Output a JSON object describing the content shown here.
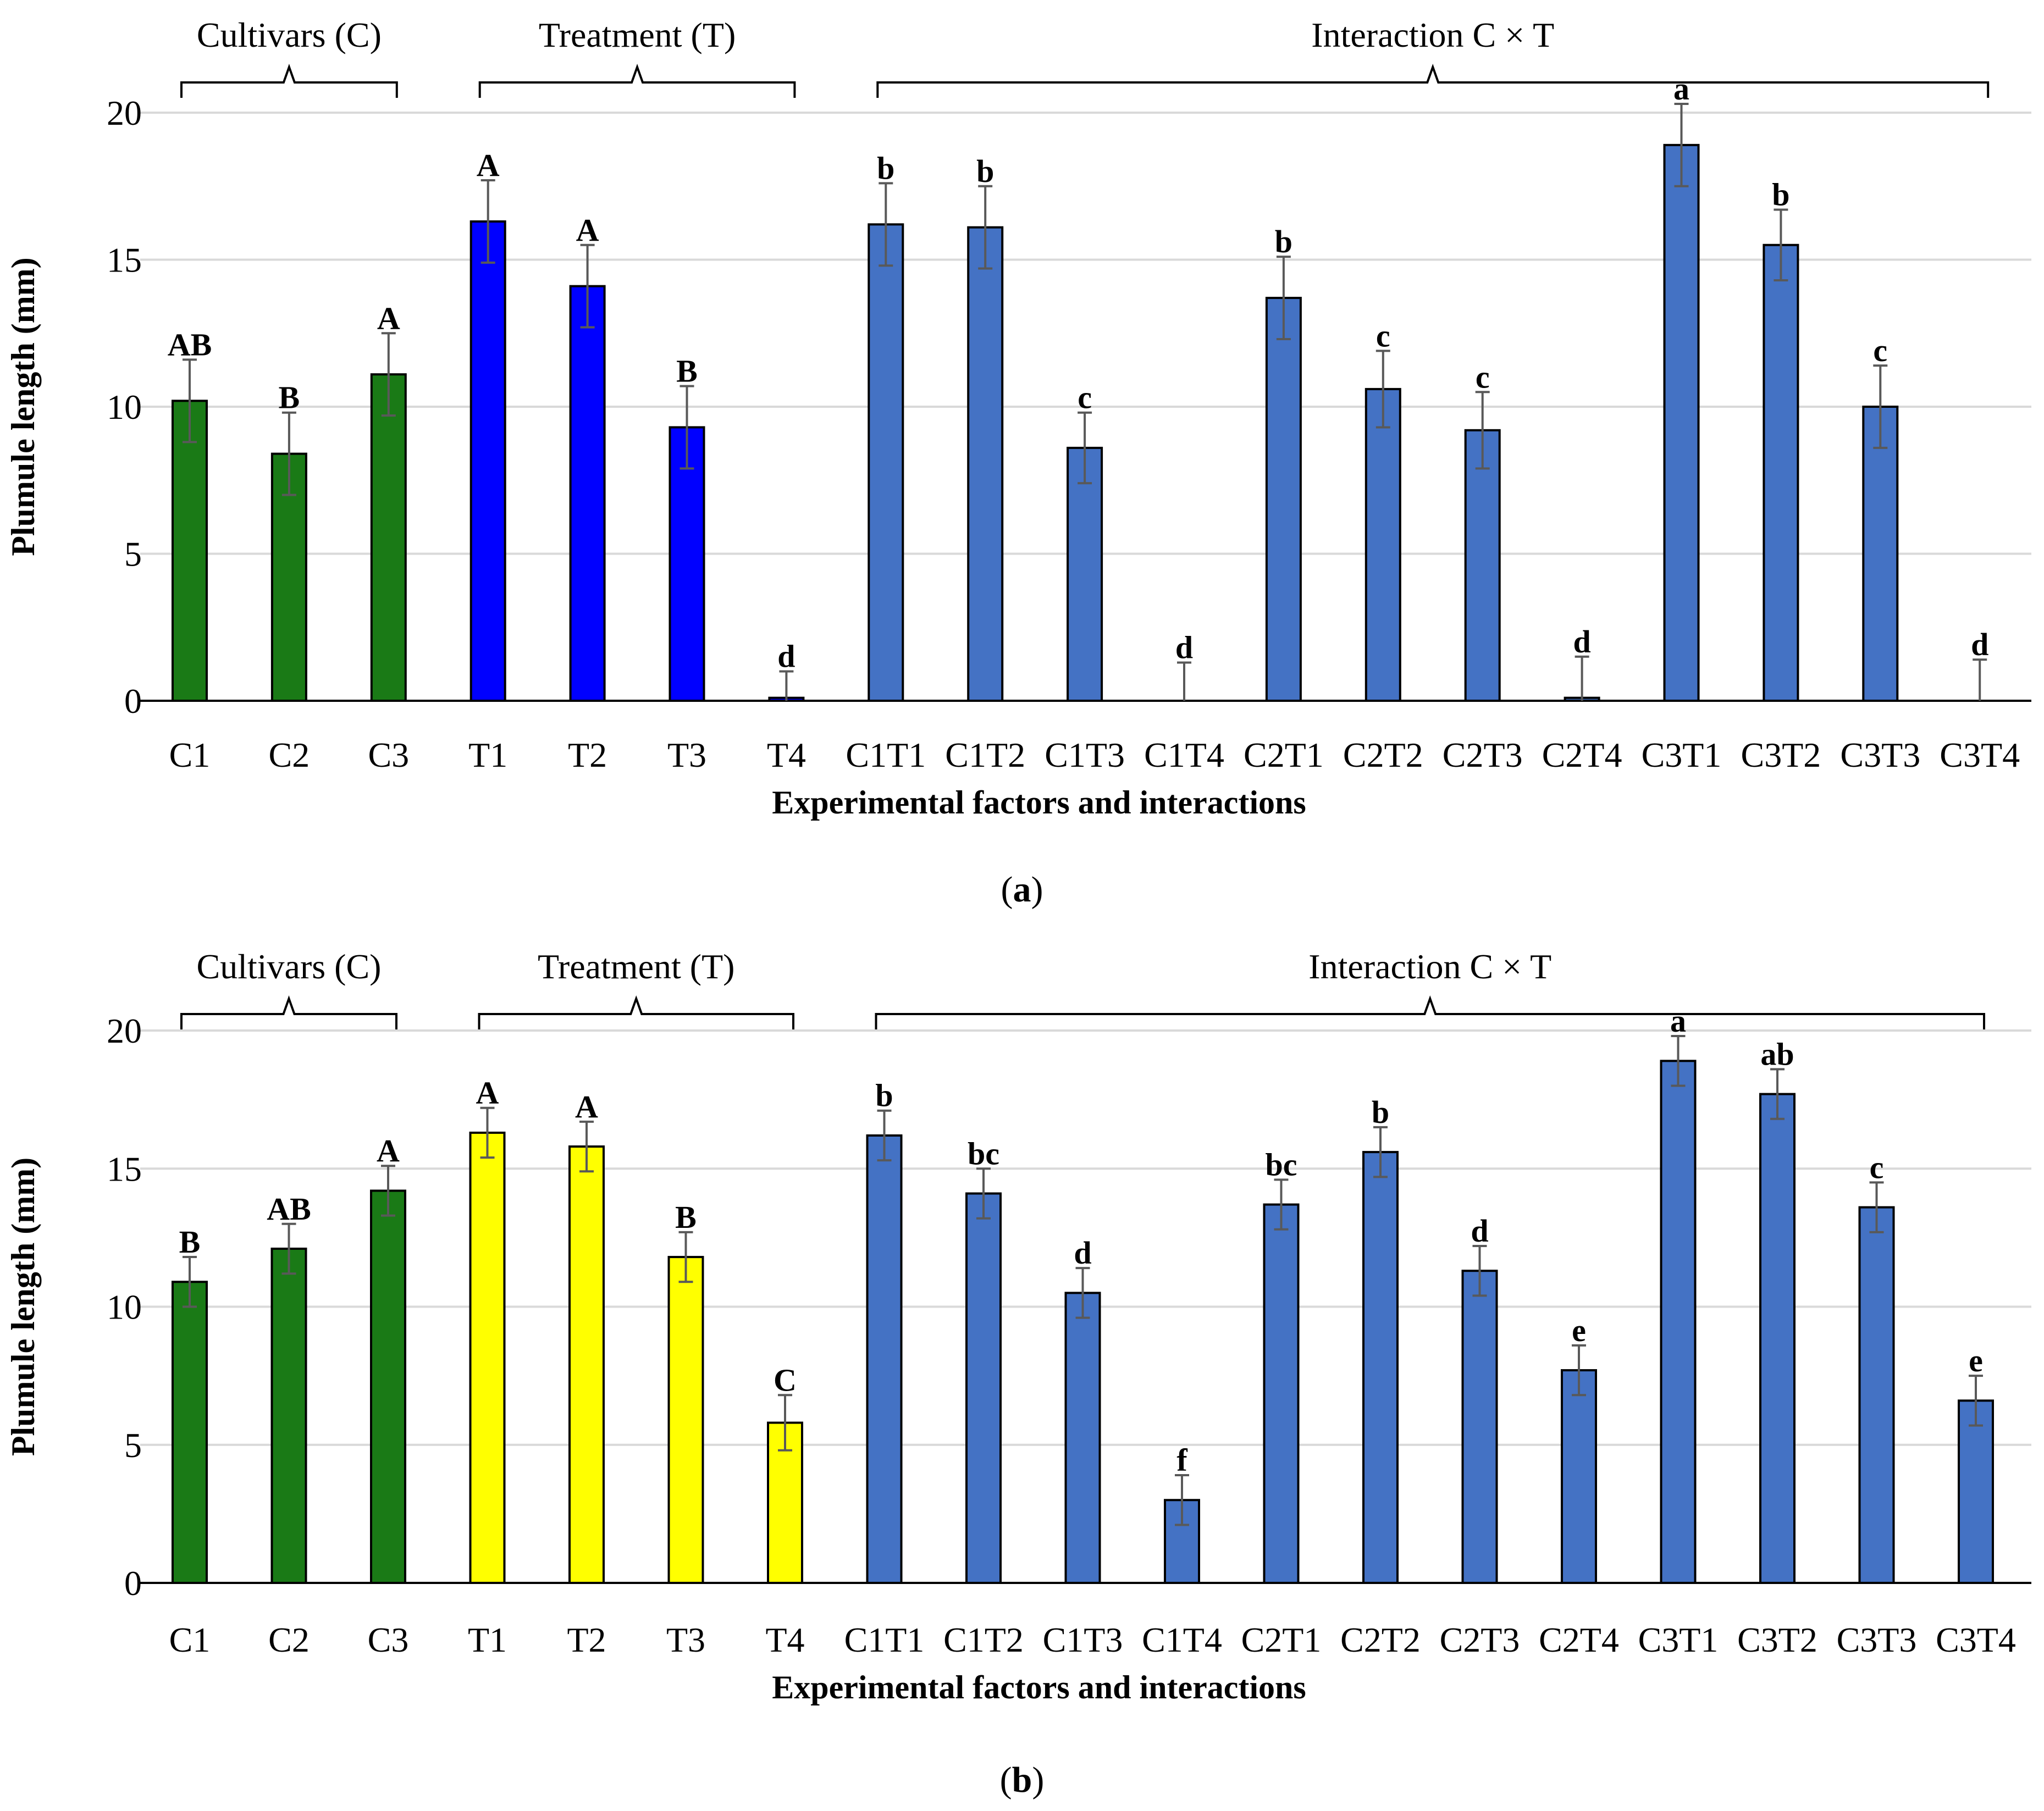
{
  "figure": {
    "panels": [
      {
        "panel_label": "a",
        "group_labels": [
          "Cultivars (C)",
          "Treatment (T)",
          "Interaction C × T"
        ],
        "colors": {
          "cultivars": "#1a7a16",
          "treatment": "#0000ff",
          "interaction": "#4472c4"
        }
      },
      {
        "panel_label": "b",
        "group_labels": [
          "Cultivars (C)",
          "Treatment (T)",
          "Interaction C × T"
        ],
        "colors": {
          "cultivars": "#1a7a16",
          "treatment": "#ffff00",
          "interaction": "#4472c4"
        }
      }
    ]
  },
  "chart_data": [
    {
      "type": "bar",
      "title": "",
      "xlabel": "Experimental factors and interactions",
      "ylabel": "Plumule length (mm)",
      "ylim": [
        0,
        20
      ],
      "yticks": [
        0,
        5,
        10,
        15,
        20
      ],
      "grid": true,
      "categories": [
        "C1",
        "C2",
        "C3",
        "T1",
        "T2",
        "T3",
        "T4",
        "C1T1",
        "C1T2",
        "C1T3",
        "C1T4",
        "C2T1",
        "C2T2",
        "C2T3",
        "C2T4",
        "C3T1",
        "C3T2",
        "C3T3",
        "C3T4"
      ],
      "values": [
        10.2,
        8.4,
        11.1,
        16.3,
        14.1,
        9.3,
        0.1,
        16.2,
        16.1,
        8.6,
        0.0,
        13.7,
        10.6,
        9.2,
        0.1,
        18.9,
        15.5,
        10.0,
        0.0
      ],
      "errors": [
        1.4,
        1.4,
        1.4,
        1.4,
        1.4,
        1.4,
        0.9,
        1.4,
        1.4,
        1.2,
        1.3,
        1.4,
        1.3,
        1.3,
        1.4,
        1.4,
        1.2,
        1.4,
        1.4
      ],
      "significance_letters": [
        "AB",
        "B",
        "A",
        "A",
        "A",
        "B",
        "d",
        "b",
        "b",
        "c",
        "d",
        "b",
        "c",
        "c",
        "d",
        "a",
        "b",
        "c",
        "d"
      ]
    },
    {
      "type": "bar",
      "title": "",
      "xlabel": "Experimental factors and interactions",
      "ylabel": "Plumule length (mm)",
      "ylim": [
        0,
        20
      ],
      "yticks": [
        0,
        5,
        10,
        15,
        20
      ],
      "grid": true,
      "categories": [
        "C1",
        "C2",
        "C3",
        "T1",
        "T2",
        "T3",
        "T4",
        "C1T1",
        "C1T2",
        "C1T3",
        "C1T4",
        "C2T1",
        "C2T2",
        "C2T3",
        "C2T4",
        "C3T1",
        "C3T2",
        "C3T3",
        "C3T4"
      ],
      "values": [
        10.9,
        12.1,
        14.2,
        16.3,
        15.8,
        11.8,
        5.8,
        16.2,
        14.1,
        10.5,
        3.0,
        13.7,
        15.6,
        11.3,
        7.7,
        18.9,
        17.7,
        13.6,
        6.6
      ],
      "errors": [
        0.9,
        0.9,
        0.9,
        0.9,
        0.9,
        0.9,
        1.0,
        0.9,
        0.9,
        0.9,
        0.9,
        0.9,
        0.9,
        0.9,
        0.9,
        0.9,
        0.9,
        0.9,
        0.9
      ],
      "significance_letters": [
        "B",
        "AB",
        "A",
        "A",
        "A",
        "B",
        "C",
        "b",
        "bc",
        "d",
        "f",
        "bc",
        "b",
        "d",
        "e",
        "a",
        "ab",
        "c",
        "e"
      ]
    }
  ]
}
